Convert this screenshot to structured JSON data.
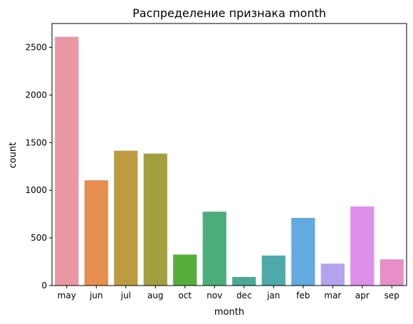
{
  "chart_data": {
    "type": "bar",
    "title": "Распределение признака month",
    "xlabel": "month",
    "ylabel": "count",
    "categories": [
      "may",
      "jun",
      "jul",
      "aug",
      "oct",
      "nov",
      "dec",
      "jan",
      "feb",
      "mar",
      "apr",
      "sep"
    ],
    "values": [
      2610,
      1105,
      1415,
      1385,
      325,
      775,
      90,
      315,
      710,
      230,
      830,
      275
    ],
    "colors": [
      "#EA96A3",
      "#E58E4D",
      "#BE9B40",
      "#A19F3E",
      "#55AE3A",
      "#4BAD7A",
      "#4BAA93",
      "#4DA9AA",
      "#62AAE0",
      "#B5A2EC",
      "#DD8FEA",
      "#E68FC8"
    ],
    "yticks": [
      0,
      500,
      1000,
      1500,
      2000,
      2500
    ],
    "ylim": [
      0,
      2750
    ],
    "grid": false,
    "legend": "none"
  }
}
